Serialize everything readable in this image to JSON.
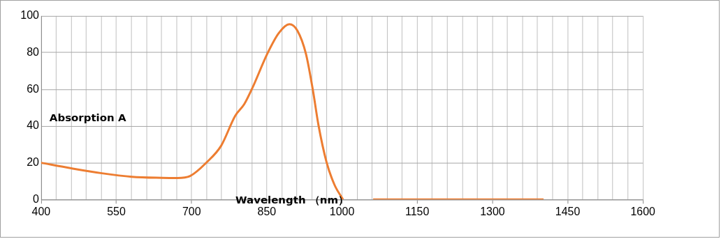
{
  "chart_data": {
    "type": "line",
    "xlabel": "Wavelength （nm）",
    "ylabel": "Absorption A",
    "xlim": [
      400,
      1600
    ],
    "xticks": [
      400,
      {
        "value": 430,
        "label": null
      },
      {
        "value": 460,
        "label": null
      },
      {
        "value": 490,
        "label": null
      },
      {
        "value": 520,
        "label": null
      },
      550,
      {
        "value": 580,
        "label": null
      },
      {
        "value": 610,
        "label": null
      },
      {
        "value": 640,
        "label": null
      },
      {
        "value": 670,
        "label": null
      },
      700,
      {
        "value": 730,
        "label": null
      },
      {
        "value": 760,
        "label": null
      },
      {
        "value": 790,
        "label": null
      },
      {
        "value": 820,
        "label": null
      },
      850,
      {
        "value": 880,
        "label": null
      },
      {
        "value": 910,
        "label": null
      },
      {
        "value": 940,
        "label": null
      },
      {
        "value": 970,
        "label": null
      },
      1000,
      {
        "value": 1030,
        "label": null
      },
      {
        "value": 1060,
        "label": null
      },
      {
        "value": 1090,
        "label": null
      },
      {
        "value": 1120,
        "label": null
      },
      1150,
      {
        "value": 1180,
        "label": null
      },
      {
        "value": 1210,
        "label": null
      },
      {
        "value": 1240,
        "label": null
      },
      {
        "value": 1270,
        "label": null
      },
      1300,
      {
        "value": 1330,
        "label": null
      },
      {
        "value": 1360,
        "label": null
      },
      {
        "value": 1390,
        "label": null
      },
      {
        "value": 1420,
        "label": null
      },
      1450,
      {
        "value": 1480,
        "label": null
      },
      {
        "value": 1510,
        "label": null
      },
      {
        "value": 1540,
        "label": null
      },
      {
        "value": 1570,
        "label": null
      },
      1600
    ],
    "ylim": [
      0,
      100
    ],
    "yticks": [
      0,
      20,
      40,
      60,
      80,
      100
    ],
    "grid": true,
    "legend": false,
    "marker": "none",
    "line_style": "solid",
    "series": [
      {
        "color": "#ed7d31",
        "x": [
          400,
          460,
          521,
          581,
          641,
          671,
          697,
          731,
          759,
          787,
          805,
          821,
          851,
          874,
          895,
          911,
          928,
          942,
          953,
          969,
          985,
          1002,
          1030,
          1062,
          1402
        ],
        "values": [
          20,
          17,
          14.3,
          12.4,
          11.8,
          11.7,
          12.8,
          20.5,
          29.3,
          45.6,
          51.9,
          60.6,
          79.4,
          90.7,
          95.5,
          92,
          79.4,
          59.4,
          40.6,
          20.5,
          8,
          0,
          null,
          0,
          0
        ]
      }
    ]
  }
}
